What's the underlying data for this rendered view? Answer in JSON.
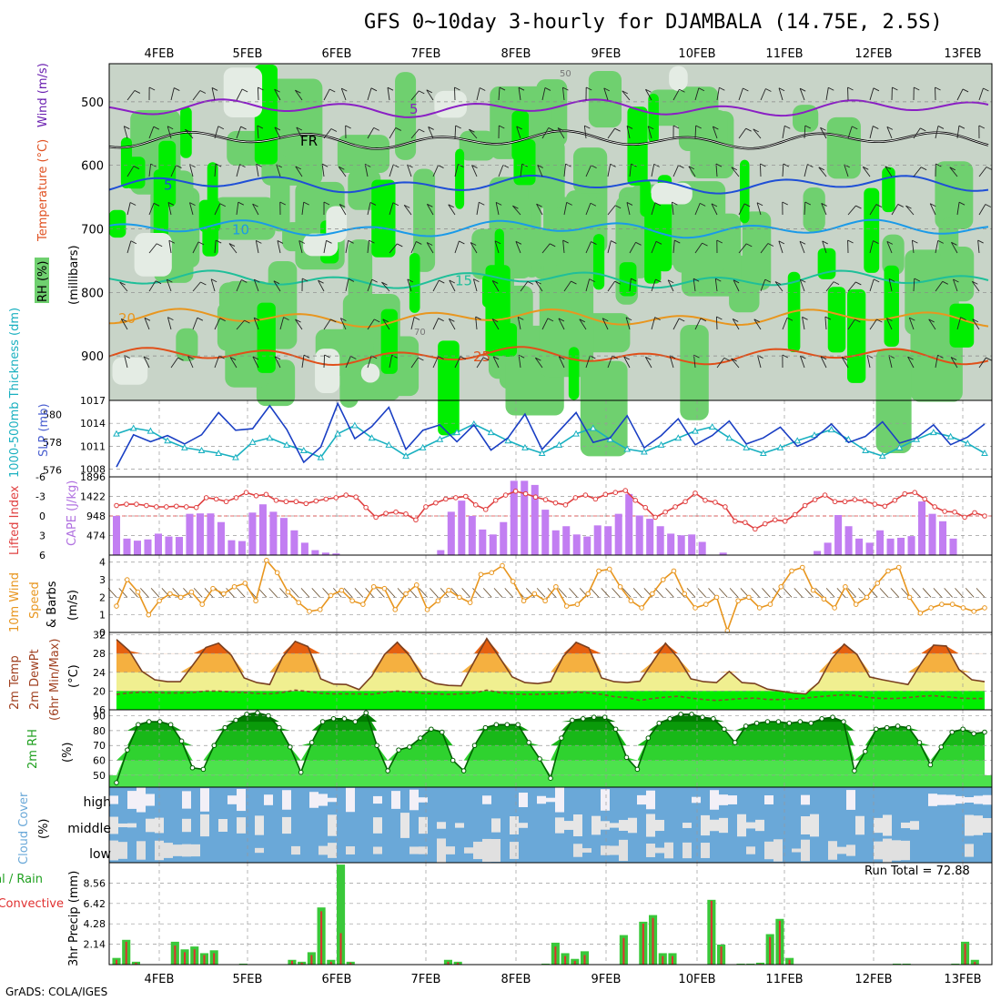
{
  "title": "GFS 0~10day 3-hourly for DJAMBALA (14.75E, 2.5S)",
  "footer": "GrADS: COLA/IGES",
  "run_total": "Run Total = 72.88",
  "colors": {
    "rh_green": "#00ee00",
    "rh_mid": "#6fd06f",
    "rh_gray": "#c8d4c8",
    "temp_purple": "#8a1fc4",
    "temp_blue": "#1f4fd6",
    "temp_lightblue": "#1a9ae8",
    "temp_teal": "#1fbf99",
    "temp_orange": "#e8961f",
    "temp_red": "#e0501a",
    "slp": "#1a3fc4",
    "thickness": "#19b0c0",
    "cape": "#c27ef2",
    "lifted": "#e04040",
    "wind_speed": "#e8961f",
    "cloud_blue": "#6aa8d8",
    "cloud_white": "#f3f0f7",
    "precip_total": "#3ac83a",
    "precip_conv": "#e03030"
  },
  "chart_data": {
    "type": "meteogram",
    "x_ticks": [
      "4FEB",
      "5FEB",
      "6FEB",
      "7FEB",
      "8FEB",
      "9FEB",
      "10FEB",
      "11FEB",
      "12FEB",
      "13FEB"
    ],
    "panels": [
      {
        "name": "upper-air",
        "ylabel_parts": [
          "RH (%)",
          "Temperature (°C)",
          "Wind (m/s)",
          "(millibars)"
        ],
        "y_ticks": [
          "500",
          "600",
          "700",
          "800",
          "900"
        ],
        "ylim": [
          970,
          440
        ],
        "contours": [
          {
            "label": "5",
            "color": "#8a1fc4",
            "level_mb": 510
          },
          {
            "label": "FR",
            "color": "#000000",
            "level_mb": 560
          },
          {
            "label": "5",
            "color": "#1f4fd6",
            "level_mb": 630
          },
          {
            "label": "10",
            "color": "#1a9ae8",
            "level_mb": 700
          },
          {
            "label": "15",
            "color": "#1fbf99",
            "level_mb": 780
          },
          {
            "label": "20",
            "color": "#e8961f",
            "level_mb": 840
          },
          {
            "label": "25",
            "color": "#e0501a",
            "level_mb": 900
          }
        ],
        "rh_labels": [
          "50",
          "70"
        ]
      },
      {
        "name": "slp-thickness",
        "ylabel_left": "1000-500mb Thickness (dm)",
        "ylabel_right": "SLP (mb)",
        "y_ticks_left": [
          "580",
          "578",
          "576"
        ],
        "y_ticks_right": [
          "1017",
          "1014",
          "1011",
          "1008"
        ],
        "slp_range": [
          1007,
          1017
        ],
        "thickness_range": [
          575.5,
          581
        ],
        "slp": [
          1008.3,
          1012.5,
          1011.6,
          1012.4,
          1011.3,
          1012.5,
          1015.4,
          1013.1,
          1013.3,
          1016.3,
          1013.2,
          1008.9,
          1010.9,
          1016.6,
          1012.0,
          1013.6,
          1016.1,
          1010.6,
          1013.1,
          1013.8,
          1011.6,
          1013.8,
          1010.5,
          1012.1,
          1015.2,
          1010.6,
          1013.0,
          1015.4,
          1011.5,
          1012.1,
          1015.0,
          1010.8,
          1012.4,
          1014.6,
          1011.2,
          1012.4,
          1014.3,
          1011.3,
          1012.1,
          1013.5,
          1011.0,
          1012.0,
          1013.9,
          1011.5,
          1012.3,
          1014.2,
          1011.4,
          1012.1,
          1013.8,
          1011.2,
          1012.2,
          1013.9
        ],
        "thickness": [
          578.6,
          579.0,
          578.8,
          578.1,
          577.6,
          577.4,
          577.2,
          576.9,
          578.0,
          578.3,
          577.8,
          577.4,
          576.9,
          578.6,
          579.2,
          578.3,
          577.8,
          577.0,
          577.6,
          578.2,
          578.7,
          579.3,
          578.7,
          578.1,
          577.6,
          577.2,
          577.8,
          578.6,
          579.0,
          578.2,
          577.5,
          577.3,
          577.8,
          578.3,
          578.8,
          579.1,
          578.3,
          577.6,
          577.2,
          577.6,
          578.1,
          578.5,
          578.9,
          578.2,
          577.4,
          577.0,
          577.6,
          578.2,
          578.7,
          578.4,
          577.9,
          577.2
        ]
      },
      {
        "name": "cape-lifted-index",
        "ylabel_left": "Lifted Index",
        "ylabel_right": "CAPE (J/kg)",
        "y_ticks_left": [
          "-6",
          "-3",
          "0",
          "3",
          "6"
        ],
        "y_ticks_right": [
          "1896",
          "1422",
          "948",
          "474"
        ],
        "cape_max": 1896,
        "cape": [
          950,
          400,
          350,
          380,
          520,
          450,
          440,
          1000,
          1010,
          1010,
          800,
          360,
          340,
          1030,
          1230,
          1050,
          900,
          600,
          300,
          120,
          60,
          40,
          0,
          0,
          0,
          0,
          0,
          0,
          0,
          0,
          0,
          120,
          1050,
          1320,
          950,
          620,
          500,
          800,
          1800,
          1800,
          1700,
          1100,
          600,
          700,
          500,
          450,
          720,
          700,
          1000,
          1480,
          960,
          880,
          700,
          520,
          480,
          500,
          320,
          0,
          60,
          0,
          0,
          0,
          0,
          0,
          0,
          0,
          0,
          100,
          300,
          970,
          700,
          400,
          300,
          600,
          400,
          420,
          460,
          1300,
          1000,
          820,
          400,
          0,
          0,
          0
        ],
        "lifted": [
          -1.6,
          -1.8,
          -1.8,
          -1.6,
          -1.4,
          -1.4,
          -1.5,
          -1.4,
          -1.3,
          -2.8,
          -2.6,
          -2.2,
          -2.8,
          -3.6,
          -3.1,
          -3.3,
          -2.4,
          -2.2,
          -2.2,
          -1.9,
          -2.3,
          -2.6,
          -2.8,
          -3.2,
          -2.9,
          -1.3,
          0.2,
          -0.4,
          -0.6,
          -0.3,
          0.6,
          -1.4,
          -2.0,
          -2.6,
          -2.8,
          -3.0,
          -1.7,
          -1.0,
          -2.4,
          -3.2,
          -3.8,
          -3.4,
          -2.9,
          -2.5,
          -2.0,
          -1.7,
          -2.8,
          -3.2,
          -2.6,
          -3.3,
          -3.6,
          -3.9,
          -2.4,
          -1.3,
          0.2,
          -0.6,
          -1.4,
          -2.2,
          -3.5,
          -2.4,
          -2.1,
          -1.4,
          0.8,
          1.0,
          2.0,
          1.2,
          0.6,
          0.8,
          -0.2,
          -1.6,
          -2.5,
          -3.2,
          -2.2,
          -2.2,
          -2.5,
          -2.3,
          -1.8,
          -1.5,
          -2.4,
          -3.4,
          -3.6,
          -2.6,
          -1.4,
          -0.7,
          -0.6,
          0.2,
          -0.5,
          0.0
        ]
      },
      {
        "name": "10m-wind",
        "ylabel": "10m Wind Speed & Barbs (m/s)",
        "y_ticks": [
          "4",
          "3",
          "2",
          "1",
          "0"
        ],
        "ylim": [
          0,
          4.4
        ],
        "speed": [
          1.5,
          3.0,
          2.3,
          1.0,
          1.8,
          2.2,
          2.0,
          2.3,
          1.6,
          2.5,
          2.2,
          2.6,
          2.8,
          1.8,
          4.1,
          3.4,
          2.3,
          1.7,
          1.2,
          1.3,
          2.1,
          2.4,
          1.8,
          1.6,
          2.6,
          2.5,
          1.3,
          2.2,
          2.7,
          1.3,
          1.8,
          2.4,
          2.0,
          1.7,
          3.3,
          3.4,
          3.8,
          2.9,
          1.8,
          2.2,
          1.8,
          2.6,
          1.5,
          1.6,
          2.2,
          3.5,
          3.6,
          2.6,
          1.8,
          1.4,
          2.2,
          3.0,
          3.5,
          2.2,
          1.4,
          1.6,
          2.0,
          0.1,
          1.8,
          2.0,
          1.4,
          1.6,
          2.6,
          3.5,
          3.7,
          2.4,
          1.9,
          1.4,
          2.6,
          1.6,
          2.0,
          2.8,
          3.5,
          3.7,
          2.0,
          1.1,
          1.4,
          1.6,
          1.6,
          1.4,
          1.2,
          1.4
        ]
      },
      {
        "name": "2m-temp",
        "ylabel": "2m Temp 2m DewPt (6hr Min/Max) (°C)",
        "y_ticks": [
          "32",
          "28",
          "24",
          "20",
          "16"
        ],
        "ylim": [
          16,
          32.5
        ],
        "temp": [
          31.0,
          28.6,
          24.2,
          22.4,
          22.0,
          22.0,
          25.6,
          29.3,
          30.2,
          27.6,
          22.8,
          21.8,
          21.4,
          27.2,
          30.6,
          29.5,
          22.6,
          21.5,
          21.4,
          20.3,
          23.2,
          27.8,
          30.4,
          27.4,
          22.8,
          21.6,
          21.2,
          21.1,
          26.2,
          31.2,
          27.2,
          23.0,
          21.8,
          21.6,
          22.0,
          27.4,
          30.4,
          29.2,
          22.8,
          22.0,
          21.8,
          22.1,
          26.2,
          30.2,
          27.0,
          22.6,
          22.0,
          21.8,
          24.2,
          21.8,
          21.6,
          20.4,
          20.0,
          19.6,
          19.4,
          21.8,
          26.8,
          30.0,
          27.8,
          23.0,
          22.4,
          21.9,
          21.4,
          25.8,
          29.8,
          29.6,
          24.6,
          22.4,
          22.0
        ],
        "dewpoint": [
          19.3,
          19.6,
          19.8,
          19.7,
          19.6,
          19.6,
          19.7,
          20.0,
          20.0,
          19.8,
          19.7,
          19.5,
          19.4,
          19.7,
          20.2,
          19.9,
          19.5,
          19.4,
          19.4,
          19.4,
          19.3,
          19.7,
          20.0,
          19.8,
          19.5,
          19.4,
          19.3,
          19.4,
          19.6,
          20.2,
          19.7,
          19.4,
          19.3,
          19.3,
          19.4,
          19.5,
          19.8,
          19.6,
          19.3,
          18.8,
          18.6,
          18.0,
          18.4,
          18.7,
          18.9,
          18.5,
          18.2,
          18.0,
          18.2,
          18.4,
          18.5,
          18.2,
          18.2,
          18.3,
          18.5,
          18.8,
          19.0,
          19.2,
          19.0,
          18.6,
          18.4,
          18.4,
          18.6,
          18.9,
          19.0,
          18.8,
          18.5,
          18.4,
          18.4
        ]
      },
      {
        "name": "2m-rh",
        "ylabel": "2m RH (%)",
        "y_ticks": [
          "90",
          "80",
          "70",
          "60",
          "50"
        ],
        "ylim": [
          42,
          94
        ],
        "rh": [
          45,
          67,
          84,
          86,
          86,
          84,
          73,
          55,
          54,
          70,
          82,
          87,
          91,
          92,
          90,
          82,
          69,
          52,
          72,
          86,
          88,
          88,
          86,
          92,
          70,
          53,
          67,
          69,
          75,
          81,
          79,
          60,
          53,
          70,
          82,
          84,
          84,
          84,
          72,
          61,
          48,
          75,
          87,
          88,
          89,
          89,
          81,
          62,
          54,
          75,
          85,
          88,
          91,
          91,
          89,
          88,
          81,
          72,
          83,
          85,
          86,
          86,
          85,
          86,
          85,
          88,
          89,
          86,
          53,
          66,
          81,
          82,
          83,
          82,
          72,
          57,
          69,
          79,
          81,
          78,
          79
        ]
      },
      {
        "name": "cloud-cover",
        "ylabel": "Cloud Cover (%)",
        "levels": [
          "high",
          "middle",
          "low"
        ]
      },
      {
        "name": "precip",
        "ylabel_left": "Total / Rain Convective",
        "ylabel": "3hr Precip (mm)",
        "y_ticks": [
          "8.56",
          "6.42",
          "4.28",
          "2.14"
        ],
        "ylim": [
          0,
          10.7
        ],
        "total": [
          0.7,
          2.6,
          0.3,
          0,
          0,
          0,
          2.4,
          1.6,
          1.9,
          1.2,
          1.5,
          0,
          0,
          0.1,
          0,
          0,
          0,
          0,
          0.5,
          0.3,
          1.3,
          6.0,
          0.5,
          10.5,
          0.3,
          0,
          0,
          0,
          0,
          0,
          0,
          0,
          0,
          0,
          0.5,
          0.3,
          0,
          0,
          0,
          0,
          0,
          0,
          0,
          0,
          0.1,
          2.3,
          1.2,
          0.6,
          1.4,
          0,
          0,
          0,
          3.1,
          0,
          4.5,
          5.2,
          1.2,
          1.2,
          0,
          0,
          0,
          6.8,
          2.1,
          0,
          0.1,
          0.1,
          0.2,
          3.2,
          4.8,
          0.7,
          0,
          0,
          0,
          0,
          0,
          0,
          0,
          0,
          0,
          0,
          0.1,
          0.1,
          0,
          0,
          0,
          0,
          0.1,
          2.4,
          0.5,
          0
        ],
        "convective": [
          0.5,
          2.4,
          0.2,
          0,
          0,
          0,
          2.0,
          1.3,
          1.6,
          1.0,
          1.2,
          0,
          0,
          0,
          0,
          0,
          0,
          0,
          0.4,
          0.2,
          1.0,
          5.6,
          0.3,
          3.3,
          0.2,
          0,
          0,
          0,
          0,
          0,
          0,
          0,
          0,
          0,
          0.3,
          0.2,
          0,
          0,
          0,
          0,
          0,
          0,
          0,
          0,
          0,
          1.9,
          0.9,
          0.4,
          1.0,
          0,
          0,
          0,
          2.8,
          0,
          4.3,
          4.9,
          0.9,
          0.9,
          0,
          0,
          0,
          6.7,
          1.9,
          0,
          0,
          0,
          0.1,
          2.9,
          4.6,
          0.5,
          0,
          0,
          0,
          0,
          0,
          0,
          0,
          0,
          0,
          0,
          0,
          0,
          0,
          0,
          0,
          0,
          0,
          2.2,
          0.3,
          0
        ]
      }
    ]
  }
}
